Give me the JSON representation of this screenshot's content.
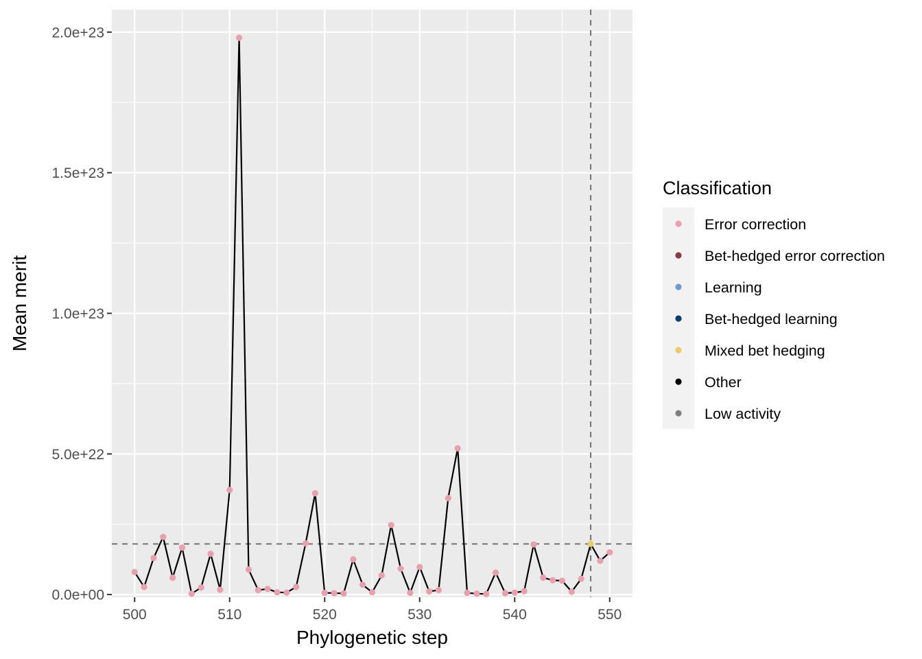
{
  "chart_data": {
    "type": "line",
    "xlabel": "Phylogenetic step",
    "ylabel": "Mean merit",
    "xlim": [
      497.6,
      552.4
    ],
    "ylim": [
      -9.5e+20,
      2.08e+23
    ],
    "x_ticks": [
      500,
      510,
      520,
      530,
      540,
      550
    ],
    "x_tick_labels": [
      "500",
      "510",
      "520",
      "530",
      "540",
      "550"
    ],
    "y_ticks": [
      0,
      5e+22,
      1e+23,
      1.5e+23,
      2e+23
    ],
    "y_tick_labels": [
      "0.0e+00",
      "5.0e+22",
      "1.0e+23",
      "1.5e+23",
      "2.0e+23"
    ],
    "hline_y": 1.8e+22,
    "vline_x": 548,
    "grid": true,
    "legend_position": "right",
    "legend_title": "Classification",
    "legend": [
      {
        "label": "Error correction",
        "color": "#E8A0AE"
      },
      {
        "label": "Bet-hedged error correction",
        "color": "#8C3A48"
      },
      {
        "label": "Learning",
        "color": "#6E9BCB"
      },
      {
        "label": "Bet-hedged learning",
        "color": "#0B3B70"
      },
      {
        "label": "Mixed bet hedging",
        "color": "#E9CB6A"
      },
      {
        "label": "Other",
        "color": "#000000"
      },
      {
        "label": "Low activity",
        "color": "#808080"
      }
    ],
    "series": [
      {
        "x": [
          500,
          501,
          502,
          503,
          504,
          505,
          506,
          507,
          508,
          509,
          510,
          511,
          512,
          513,
          514,
          515,
          516,
          517,
          518,
          519,
          520,
          521,
          522,
          523,
          524,
          525,
          526,
          527,
          528,
          529,
          530,
          531,
          532,
          533,
          534,
          535,
          536,
          537,
          538,
          539,
          540,
          541,
          542,
          543,
          544,
          545,
          546,
          547,
          548,
          549,
          550
        ],
        "y": [
          8e+21,
          2.7e+21,
          1.3e+22,
          2.05e+22,
          6e+21,
          1.67e+22,
          3e+20,
          2.5e+21,
          1.45e+22,
          1.7e+21,
          3.72e+22,
          1.98e+23,
          8.9e+21,
          1.6e+21,
          2e+21,
          8e+20,
          7e+20,
          2.7e+21,
          1.82e+22,
          3.6e+22,
          6e+20,
          5e+20,
          4e+20,
          1.25e+22,
          3.5e+21,
          8e+20,
          6.8e+21,
          2.47e+22,
          9.2e+21,
          6e+20,
          9.8e+21,
          1.1e+21,
          1.6e+21,
          3.43e+22,
          5.2e+22,
          6e+20,
          3e+20,
          2e+20,
          7.8e+21,
          5e+20,
          7e+20,
          1.2e+21,
          1.78e+22,
          6e+21,
          5.1e+21,
          4.9e+21,
          1e+21,
          5.6e+21,
          1.8e+22,
          1.2e+22,
          1.5e+22
        ],
        "classification": [
          "Error correction",
          "Error correction",
          "Error correction",
          "Error correction",
          "Error correction",
          "Error correction",
          "Error correction",
          "Error correction",
          "Error correction",
          "Error correction",
          "Error correction",
          "Error correction",
          "Error correction",
          "Error correction",
          "Error correction",
          "Error correction",
          "Error correction",
          "Error correction",
          "Error correction",
          "Error correction",
          "Error correction",
          "Error correction",
          "Error correction",
          "Error correction",
          "Error correction",
          "Error correction",
          "Error correction",
          "Error correction",
          "Error correction",
          "Error correction",
          "Error correction",
          "Error correction",
          "Error correction",
          "Error correction",
          "Error correction",
          "Error correction",
          "Error correction",
          "Error correction",
          "Error correction",
          "Error correction",
          "Error correction",
          "Error correction",
          "Error correction",
          "Error correction",
          "Error correction",
          "Error correction",
          "Error correction",
          "Error correction",
          "Mixed bet hedging",
          "Error correction",
          "Error correction"
        ]
      }
    ]
  },
  "colors": {
    "panel_background": "#EBEBEB",
    "gridline": "#FFFFFF",
    "reference_line": "#737373",
    "data_line": "#000000",
    "legend_key_background": "#F2F2F2"
  }
}
